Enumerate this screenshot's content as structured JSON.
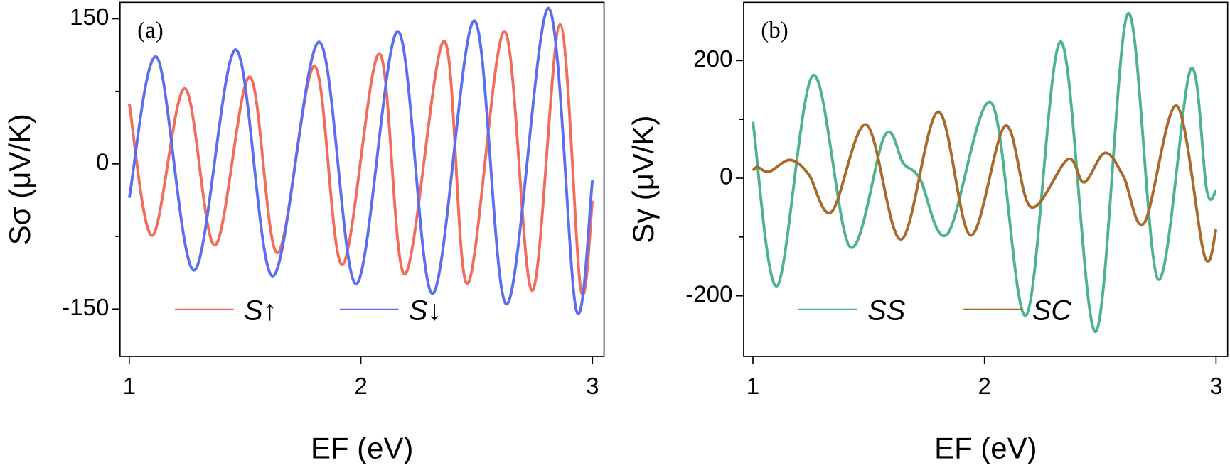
{
  "chart_data": [
    {
      "type": "line",
      "panel_label": "(a)",
      "xlabel": "EF (eV)",
      "ylabel": "Sσ (μV/K)",
      "xlim": [
        0.96,
        3.05
      ],
      "ylim": [
        -199,
        167
      ],
      "xticks": [
        1,
        2,
        3
      ],
      "yticks": [
        -150,
        0,
        150
      ],
      "yminor": [
        -75,
        75
      ],
      "legend": "lower center",
      "series": [
        {
          "name": "S↑",
          "color": "#f26b5b",
          "x": [
            1.0,
            1.1,
            1.24,
            1.37,
            1.52,
            1.64,
            1.8,
            1.92,
            2.08,
            2.19,
            2.36,
            2.46,
            2.62,
            2.74,
            2.86,
            2.95,
            3.0
          ],
          "values": [
            62,
            -74,
            78,
            -84,
            90,
            -92,
            101,
            -104,
            114,
            -114,
            127,
            -124,
            137,
            -131,
            144,
            -130,
            -38
          ]
        },
        {
          "name": "S↓",
          "color": "#5b6ef2",
          "x": [
            1.0,
            1.12,
            1.28,
            1.46,
            1.62,
            1.82,
            1.98,
            2.16,
            2.31,
            2.49,
            2.63,
            2.81,
            2.93,
            3.0
          ],
          "values": [
            -35,
            110,
            -110,
            118,
            -116,
            126,
            -124,
            137,
            -134,
            148,
            -145,
            161,
            -151,
            -17
          ]
        }
      ]
    },
    {
      "type": "line",
      "panel_label": "(b)",
      "xlabel": "EF (eV)",
      "ylabel": "Sγ (μV/K)",
      "xlim": [
        0.96,
        3.05
      ],
      "ylim": [
        -303,
        299
      ],
      "xticks": [
        1,
        2,
        3
      ],
      "yticks": [
        -200,
        0,
        200
      ],
      "yminor": [
        -100,
        100
      ],
      "legend": "lower center",
      "series": [
        {
          "name": "SS",
          "color": "#4db38e",
          "x": [
            1.0,
            1.105,
            1.26,
            1.42,
            1.57,
            1.65,
            1.72,
            1.84,
            2.03,
            2.18,
            2.33,
            2.48,
            2.62,
            2.75,
            2.89,
            2.96,
            3.0
          ],
          "values": [
            96,
            -183,
            175,
            -117,
            73,
            25,
            0,
            -95,
            128,
            -233,
            232,
            -261,
            280,
            -172,
            185,
            -21,
            -21
          ]
        },
        {
          "name": "SC",
          "color": "#a8692a",
          "x": [
            1.0,
            1.02,
            1.07,
            1.16,
            1.24,
            1.34,
            1.49,
            1.64,
            1.8,
            1.94,
            2.09,
            2.2,
            2.36,
            2.43,
            2.52,
            2.6,
            2.69,
            2.83,
            2.95,
            3.0
          ],
          "values": [
            13,
            19,
            11,
            31,
            7,
            -57,
            91,
            -104,
            113,
            -97,
            89,
            -49,
            32,
            -7,
            43,
            3,
            -76,
            123,
            -132,
            -87
          ]
        }
      ]
    }
  ]
}
